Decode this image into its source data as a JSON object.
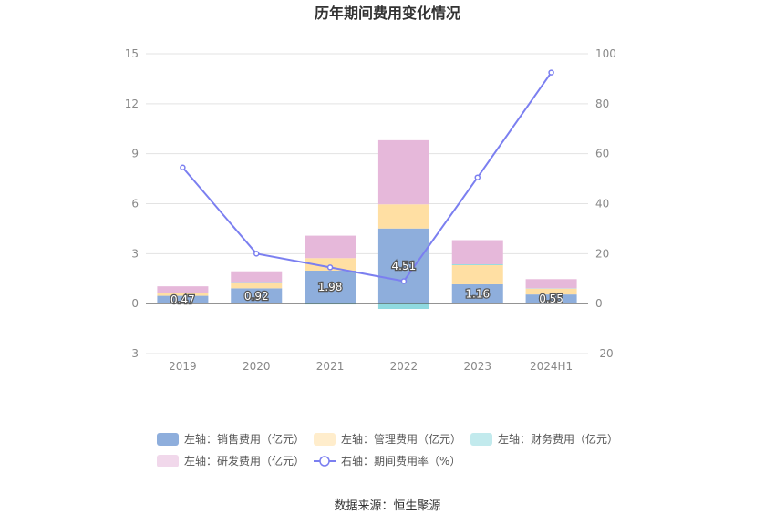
{
  "chart_data": {
    "type": "bar",
    "title": "历年期间费用变化情况",
    "categories": [
      "2019",
      "2020",
      "2021",
      "2022",
      "2023",
      "2024H1"
    ],
    "stacked": true,
    "y_left": {
      "ylim": [
        -3,
        15
      ],
      "ticks": [
        "-3",
        "0",
        "3",
        "6",
        "9",
        "12",
        "15"
      ]
    },
    "y_right": {
      "ylim": [
        -20,
        100
      ],
      "ticks": [
        "-20",
        "0",
        "20",
        "40",
        "60",
        "80",
        "100"
      ]
    },
    "series": [
      {
        "name": "左轴：销售费用（亿元）",
        "type": "bar",
        "axis": "left",
        "color": "#8eaedc",
        "values": [
          0.47,
          0.92,
          1.98,
          4.51,
          1.16,
          0.55
        ],
        "labels": [
          "0.47",
          "0.92",
          "1.98",
          "4.51",
          "1.16",
          "0.55"
        ]
      },
      {
        "name": "左轴：管理费用（亿元）",
        "type": "bar",
        "axis": "left",
        "color": "#ffdfa3",
        "values": [
          0.15,
          0.35,
          0.75,
          1.45,
          1.15,
          0.35
        ]
      },
      {
        "name": "左轴：财务费用（亿元）",
        "type": "bar",
        "axis": "left",
        "color": "#8fd9df",
        "values": [
          0.02,
          0.02,
          -0.05,
          -0.32,
          0.05,
          0.02
        ]
      },
      {
        "name": "左轴：研发费用（亿元）",
        "type": "bar",
        "axis": "left",
        "color": "#e6b8da",
        "values": [
          0.4,
          0.65,
          1.35,
          3.85,
          1.45,
          0.55
        ]
      },
      {
        "name": "右轴：期间费用率（%）",
        "type": "line",
        "axis": "right",
        "color": "#7b7ff0",
        "values": [
          54.5,
          20,
          14.5,
          9,
          50.5,
          92.5
        ]
      }
    ],
    "grid": true,
    "legend_position": "bottom"
  },
  "source_text": "数据来源：恒生聚源"
}
